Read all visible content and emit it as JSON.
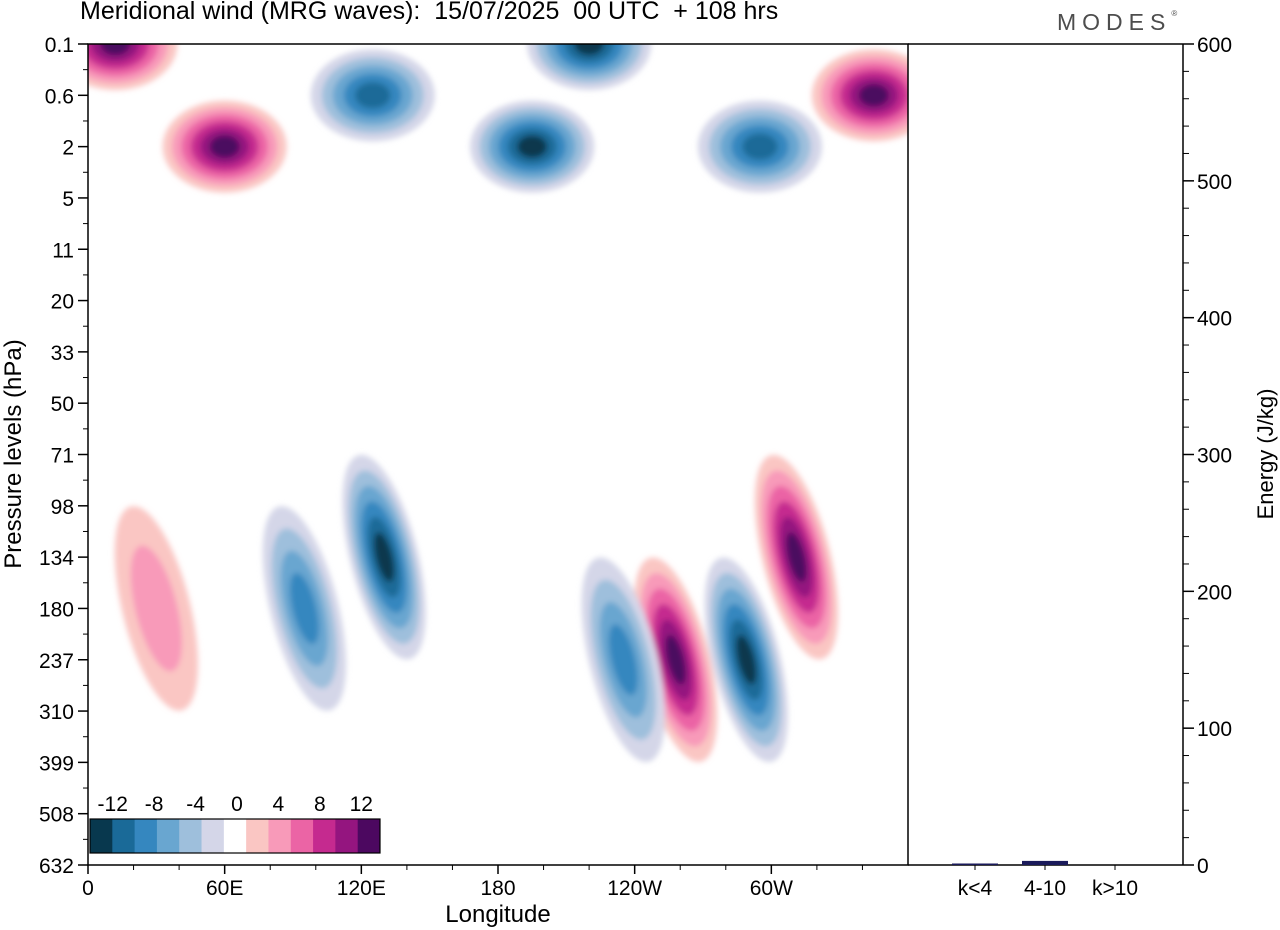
{
  "header": {
    "title": "Meridional wind (MRG waves):  15/07/2025  00 UTC  + 108 hrs",
    "brand": "MODES",
    "brand_mark": "®"
  },
  "chart_data": [
    {
      "type": "heatmap",
      "title": "Meridional wind (MRG waves):  15/07/2025  00 UTC  + 108 hrs",
      "xlabel": "Longitude",
      "ylabel": "Pressure levels (hPa)",
      "x_ticks": [
        {
          "lon": 0,
          "label": "0"
        },
        {
          "lon": 60,
          "label": "60E"
        },
        {
          "lon": 120,
          "label": "120E"
        },
        {
          "lon": 180,
          "label": "180"
        },
        {
          "lon": 240,
          "label": "120W"
        },
        {
          "lon": 300,
          "label": "60W"
        }
      ],
      "x_range": [
        0,
        360
      ],
      "y_levels": [
        "0.1",
        "0.6",
        "2",
        "5",
        "11",
        "20",
        "33",
        "50",
        "71",
        "98",
        "134",
        "180",
        "237",
        "310",
        "399",
        "508",
        "632"
      ],
      "colorbar": {
        "labels": [
          "-12",
          "-8",
          "-4",
          "0",
          "4",
          "8",
          "12"
        ],
        "boundaries": [
          -14,
          -12,
          -10,
          -8,
          -6,
          -4,
          -2,
          2,
          4,
          6,
          8,
          10,
          12,
          14
        ],
        "colors": [
          "#08384e",
          "#1a6a98",
          "#3587bf",
          "#69a6d0",
          "#9ebfdc",
          "#d4d6e8",
          "#ffffff",
          "#fac6c3",
          "#f89ab9",
          "#eb64a5",
          "#c52a8f",
          "#94157f",
          "#4c0860"
        ]
      },
      "features": [
        {
          "lon": 12,
          "level": "0.1",
          "value": 12
        },
        {
          "lon": 60,
          "level": "2",
          "value": 14
        },
        {
          "lon": 125,
          "level": "0.6",
          "value": -10
        },
        {
          "lon": 195,
          "level": "2",
          "value": -12
        },
        {
          "lon": 220,
          "level": "0.1",
          "value": -12
        },
        {
          "lon": 295,
          "level": "2",
          "value": -10
        },
        {
          "lon": 345,
          "level": "0.6",
          "value": 14
        },
        {
          "lon": 130,
          "level": "134",
          "value": -14
        },
        {
          "lon": 258,
          "level": "237",
          "value": 14
        },
        {
          "lon": 289,
          "level": "237",
          "value": -12
        },
        {
          "lon": 311,
          "level": "134",
          "value": 12
        },
        {
          "lon": 235,
          "level": "237",
          "value": -8
        },
        {
          "lon": 95,
          "level": "180",
          "value": -8
        },
        {
          "lon": 30,
          "level": "180",
          "value": 4
        }
      ]
    },
    {
      "type": "bar",
      "categories": [
        "k<4",
        "4-10",
        "k>10"
      ],
      "values": [
        1,
        3,
        0
      ],
      "ylabel": "Energy (J/kg)",
      "ylim": [
        0,
        600
      ],
      "y_ticks": [
        0,
        100,
        200,
        300,
        400,
        500,
        600
      ],
      "bar_color": "#1a1a5a"
    }
  ]
}
